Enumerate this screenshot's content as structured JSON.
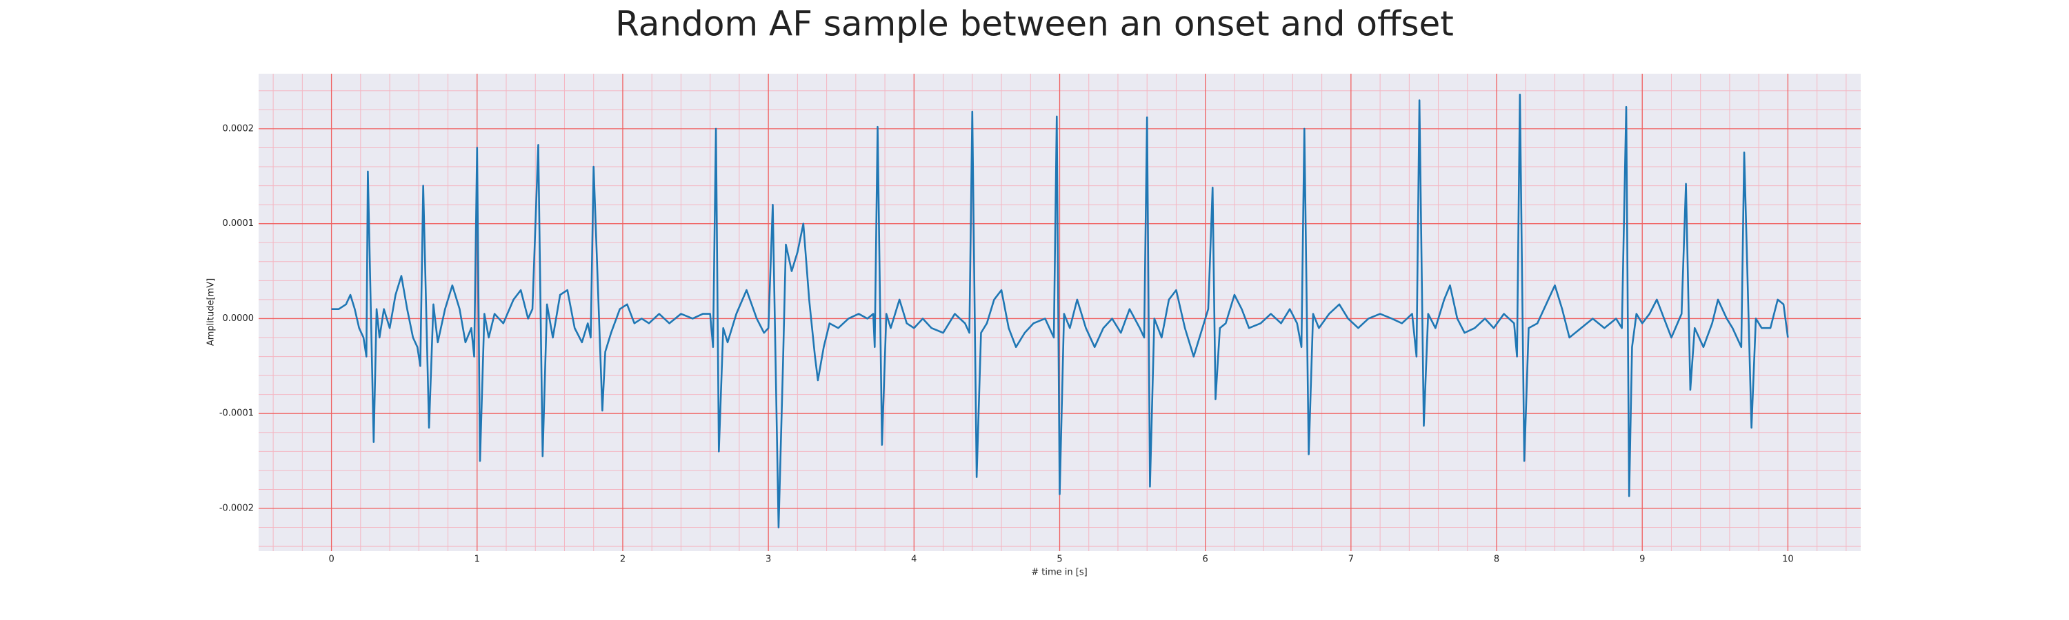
{
  "chart_data": {
    "type": "line",
    "title": "Random AF sample between an onset and offset",
    "xlabel": "# time in [s]",
    "ylabel": "Amplitude[mV]",
    "color": "#1f77b4",
    "grid": true,
    "xlim": [
      -0.5,
      10.5
    ],
    "ylim": [
      -0.000245,
      0.000258
    ],
    "xticks": [
      0,
      1,
      2,
      3,
      4,
      5,
      6,
      7,
      8,
      9,
      10
    ],
    "yticks": [
      -0.0002,
      -0.0001,
      {
        "value": 0,
        "label": "0.0000"
      },
      0.0001,
      0.0002
    ],
    "minor_xticks": [
      -0.4,
      -0.2,
      0.2,
      0.4,
      0.6,
      0.8,
      1.2,
      1.4,
      1.6,
      1.8,
      2.2,
      2.4,
      2.6,
      2.8,
      3.2,
      3.4,
      3.6,
      3.8,
      4.2,
      4.4,
      4.6,
      4.8,
      5.2,
      5.4,
      5.6,
      5.8,
      6.2,
      6.4,
      6.6,
      6.8,
      7.2,
      7.4,
      7.6,
      7.8,
      8.2,
      8.4,
      8.6,
      8.8,
      9.2,
      9.4,
      9.6,
      9.8,
      10.2,
      10.4
    ],
    "minor_yticks": [
      -0.00024,
      -0.00022,
      -0.00018,
      -0.00016,
      -0.00014,
      -0.00012,
      -8e-05,
      -6e-05,
      -4e-05,
      -2e-05,
      2e-05,
      4e-05,
      6e-05,
      8e-05,
      0.00012,
      0.00014,
      0.00016,
      0.00018,
      0.00022,
      0.00024
    ],
    "x": [
      0,
      0.05,
      0.1,
      0.13,
      0.16,
      0.19,
      0.22,
      0.24,
      0.25,
      0.29,
      0.31,
      0.33,
      0.36,
      0.4,
      0.44,
      0.48,
      0.52,
      0.56,
      0.59,
      0.61,
      0.63,
      0.67,
      0.7,
      0.73,
      0.78,
      0.83,
      0.88,
      0.92,
      0.96,
      0.98,
      1.0,
      1.02,
      1.05,
      1.08,
      1.12,
      1.18,
      1.25,
      1.3,
      1.35,
      1.38,
      1.42,
      1.45,
      1.48,
      1.52,
      1.57,
      1.62,
      1.67,
      1.72,
      1.76,
      1.78,
      1.8,
      1.86,
      1.88,
      1.92,
      1.98,
      2.03,
      2.08,
      2.13,
      2.18,
      2.25,
      2.32,
      2.4,
      2.48,
      2.55,
      2.6,
      2.62,
      2.64,
      2.66,
      2.69,
      2.72,
      2.78,
      2.85,
      2.92,
      2.97,
      3.0,
      3.03,
      3.07,
      3.1,
      3.12,
      3.16,
      3.2,
      3.24,
      3.28,
      3.32,
      3.34,
      3.38,
      3.42,
      3.48,
      3.55,
      3.62,
      3.68,
      3.72,
      3.73,
      3.75,
      3.78,
      3.81,
      3.84,
      3.9,
      3.95,
      4.0,
      4.06,
      4.12,
      4.2,
      4.28,
      4.35,
      4.38,
      4.4,
      4.43,
      4.46,
      4.5,
      4.55,
      4.6,
      4.65,
      4.7,
      4.76,
      4.82,
      4.9,
      4.96,
      4.98,
      5.0,
      5.03,
      5.07,
      5.12,
      5.18,
      5.24,
      5.3,
      5.36,
      5.42,
      5.48,
      5.55,
      5.58,
      5.6,
      5.62,
      5.65,
      5.7,
      5.75,
      5.8,
      5.86,
      5.92,
      5.98,
      6.02,
      6.05,
      6.07,
      6.1,
      6.14,
      6.2,
      6.25,
      6.3,
      6.38,
      6.45,
      6.52,
      6.58,
      6.63,
      6.66,
      6.68,
      6.71,
      6.74,
      6.78,
      6.85,
      6.92,
      6.98,
      7.05,
      7.12,
      7.2,
      7.28,
      7.35,
      7.42,
      7.45,
      7.47,
      7.5,
      7.53,
      7.58,
      7.64,
      7.68,
      7.73,
      7.78,
      7.85,
      7.92,
      7.98,
      8.05,
      8.12,
      8.14,
      8.16,
      8.19,
      8.22,
      8.28,
      8.34,
      8.4,
      8.45,
      8.5,
      8.58,
      8.66,
      8.74,
      8.82,
      8.86,
      8.89,
      8.91,
      8.93,
      8.96,
      9.0,
      9.05,
      9.1,
      9.15,
      9.2,
      9.27,
      9.3,
      9.33,
      9.36,
      9.42,
      9.48,
      9.52,
      9.58,
      9.62,
      9.68,
      9.7,
      9.75,
      9.78,
      9.82,
      9.88,
      9.93,
      9.97,
      10.0
    ],
    "values": [
      1e-05,
      1e-05,
      1.5e-05,
      2.5e-05,
      1e-05,
      -1e-05,
      -2e-05,
      -4e-05,
      0.000155,
      -0.00013,
      1e-05,
      -2e-05,
      1e-05,
      -1e-05,
      2.5e-05,
      4.5e-05,
      1e-05,
      -2e-05,
      -3e-05,
      -5e-05,
      0.00014,
      -0.000115,
      1.5e-05,
      -2.5e-05,
      1e-05,
      3.5e-05,
      1e-05,
      -2.5e-05,
      -1e-05,
      -4e-05,
      0.00018,
      -0.00015,
      5e-06,
      -2e-05,
      5e-06,
      -5e-06,
      2e-05,
      3e-05,
      0,
      1e-05,
      0.000183,
      -0.000145,
      1.5e-05,
      -2e-05,
      2.5e-05,
      3e-05,
      -1e-05,
      -2.5e-05,
      -5e-06,
      -2e-05,
      0.00016,
      -9.7e-05,
      -3.5e-05,
      -1.5e-05,
      1e-05,
      1.5e-05,
      -5e-06,
      0,
      -5e-06,
      5e-06,
      -5e-06,
      5e-06,
      0,
      5e-06,
      5e-06,
      -3e-05,
      0.0002,
      -0.00014,
      -1e-05,
      -2.5e-05,
      5e-06,
      3e-05,
      0,
      -1.5e-05,
      -1e-05,
      0.00012,
      -0.00022,
      -5e-05,
      7.8e-05,
      5e-05,
      7e-05,
      0.0001,
      2e-05,
      -4e-05,
      -6.5e-05,
      -3e-05,
      -5e-06,
      -1e-05,
      0,
      5e-06,
      0,
      5e-06,
      -3e-05,
      0.000202,
      -0.000133,
      5e-06,
      -1e-05,
      2e-05,
      -5e-06,
      -1e-05,
      0,
      -1e-05,
      -1.5e-05,
      5e-06,
      -5e-06,
      -1.5e-05,
      0.000218,
      -0.000167,
      -1.5e-05,
      -5e-06,
      2e-05,
      3e-05,
      -1e-05,
      -3e-05,
      -1.5e-05,
      -5e-06,
      0,
      -2e-05,
      0.000213,
      -0.000185,
      5e-06,
      -1e-05,
      2e-05,
      -1e-05,
      -3e-05,
      -1e-05,
      0,
      -1.5e-05,
      1e-05,
      -1e-05,
      -2e-05,
      0.000212,
      -0.000177,
      0,
      -2e-05,
      2e-05,
      3e-05,
      -1e-05,
      -4e-05,
      -1e-05,
      1e-05,
      0.000138,
      -8.5e-05,
      -1e-05,
      -5e-06,
      2.5e-05,
      1e-05,
      -1e-05,
      -5e-06,
      5e-06,
      -5e-06,
      1e-05,
      -5e-06,
      -3e-05,
      0.0002,
      -0.000143,
      5e-06,
      -1e-05,
      5e-06,
      1.5e-05,
      0,
      -1e-05,
      0,
      5e-06,
      0,
      -5e-06,
      5e-06,
      -4e-05,
      0.00023,
      -0.000113,
      5e-06,
      -1e-05,
      2e-05,
      3.5e-05,
      0,
      -1.5e-05,
      -1e-05,
      0,
      -1e-05,
      5e-06,
      -5e-06,
      -4e-05,
      0.000236,
      -0.00015,
      -1e-05,
      -5e-06,
      1.5e-05,
      3.5e-05,
      1e-05,
      -2e-05,
      -1e-05,
      0,
      -1e-05,
      0,
      -1e-05,
      0.000223,
      -0.000187,
      -3e-05,
      5e-06,
      -5e-06,
      5e-06,
      2e-05,
      0,
      -2e-05,
      5e-06,
      0.000142,
      -7.5e-05,
      -1e-05,
      -3e-05,
      -5e-06,
      2e-05,
      0,
      -1e-05,
      -3e-05,
      0.000175,
      -0.000115,
      0,
      -1e-05,
      -1e-05,
      2e-05,
      1.5e-05,
      -2e-05
    ]
  }
}
